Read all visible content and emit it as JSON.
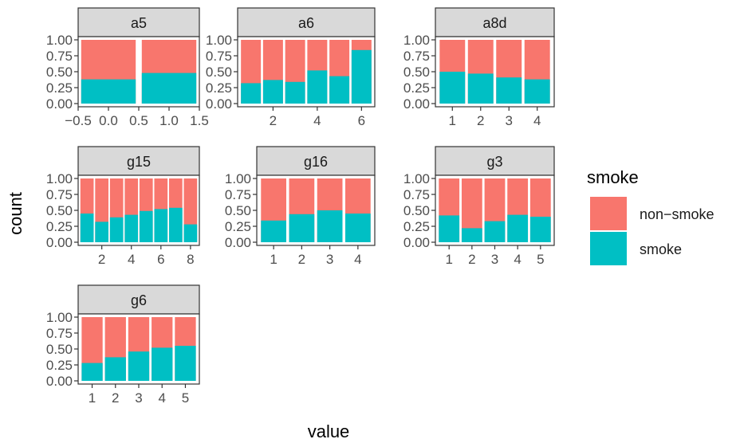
{
  "chart_data": {
    "type": "bar",
    "stacked": true,
    "position": "fill",
    "xlabel": "value",
    "ylabel": "count",
    "yticks": [
      "0.00",
      "0.25",
      "0.50",
      "0.75",
      "1.00"
    ],
    "legend": {
      "title": "smoke",
      "placement": "right",
      "entries": [
        {
          "label": "non−smoke",
          "color": "#F8766D"
        },
        {
          "label": "smoke",
          "color": "#00BFC4"
        }
      ]
    },
    "facets": [
      {
        "name": "a5",
        "xlim": [
          -0.5,
          1.5
        ],
        "xticks": [
          "−0.5",
          "0.0",
          "0.5",
          "1.0",
          "1.5"
        ],
        "tick_values": [
          -0.5,
          0,
          0.5,
          1,
          1.5
        ],
        "x": [
          0,
          1
        ],
        "smoke_share": [
          0.38,
          0.48
        ]
      },
      {
        "name": "a6",
        "xlim": [
          0.4,
          6.6
        ],
        "xticks": [
          "2",
          "4",
          "6"
        ],
        "tick_values": [
          2,
          4,
          6
        ],
        "x": [
          1,
          2,
          3,
          4,
          5,
          6
        ],
        "smoke_share": [
          0.32,
          0.37,
          0.34,
          0.52,
          0.43,
          0.84
        ]
      },
      {
        "name": "a8d",
        "xlim": [
          0.4,
          4.6
        ],
        "xticks": [
          "1",
          "2",
          "3",
          "4"
        ],
        "tick_values": [
          1,
          2,
          3,
          4
        ],
        "x": [
          1,
          2,
          3,
          4
        ],
        "smoke_share": [
          0.5,
          0.47,
          0.41,
          0.38
        ]
      },
      {
        "name": "g15",
        "xlim": [
          0.4,
          8.6
        ],
        "xticks": [
          "2",
          "4",
          "6",
          "8"
        ],
        "tick_values": [
          2,
          4,
          6,
          8
        ],
        "x": [
          1,
          2,
          3,
          4,
          5,
          6,
          7,
          8
        ],
        "smoke_share": [
          0.45,
          0.32,
          0.39,
          0.43,
          0.49,
          0.52,
          0.54,
          0.28
        ]
      },
      {
        "name": "g16",
        "xlim": [
          0.4,
          4.6
        ],
        "xticks": [
          "1",
          "2",
          "3",
          "4"
        ],
        "tick_values": [
          1,
          2,
          3,
          4
        ],
        "x": [
          1,
          2,
          3,
          4
        ],
        "smoke_share": [
          0.34,
          0.44,
          0.5,
          0.45
        ]
      },
      {
        "name": "g3",
        "xlim": [
          0.4,
          5.6
        ],
        "xticks": [
          "1",
          "2",
          "3",
          "4",
          "5"
        ],
        "tick_values": [
          1,
          2,
          3,
          4,
          5
        ],
        "x": [
          1,
          2,
          3,
          4,
          5
        ],
        "smoke_share": [
          0.42,
          0.22,
          0.33,
          0.43,
          0.4
        ]
      },
      {
        "name": "g6",
        "xlim": [
          0.4,
          5.6
        ],
        "xticks": [
          "1",
          "2",
          "3",
          "4",
          "5"
        ],
        "tick_values": [
          1,
          2,
          3,
          4,
          5
        ],
        "x": [
          1,
          2,
          3,
          4,
          5
        ],
        "smoke_share": [
          0.28,
          0.37,
          0.46,
          0.52,
          0.55
        ]
      }
    ]
  }
}
